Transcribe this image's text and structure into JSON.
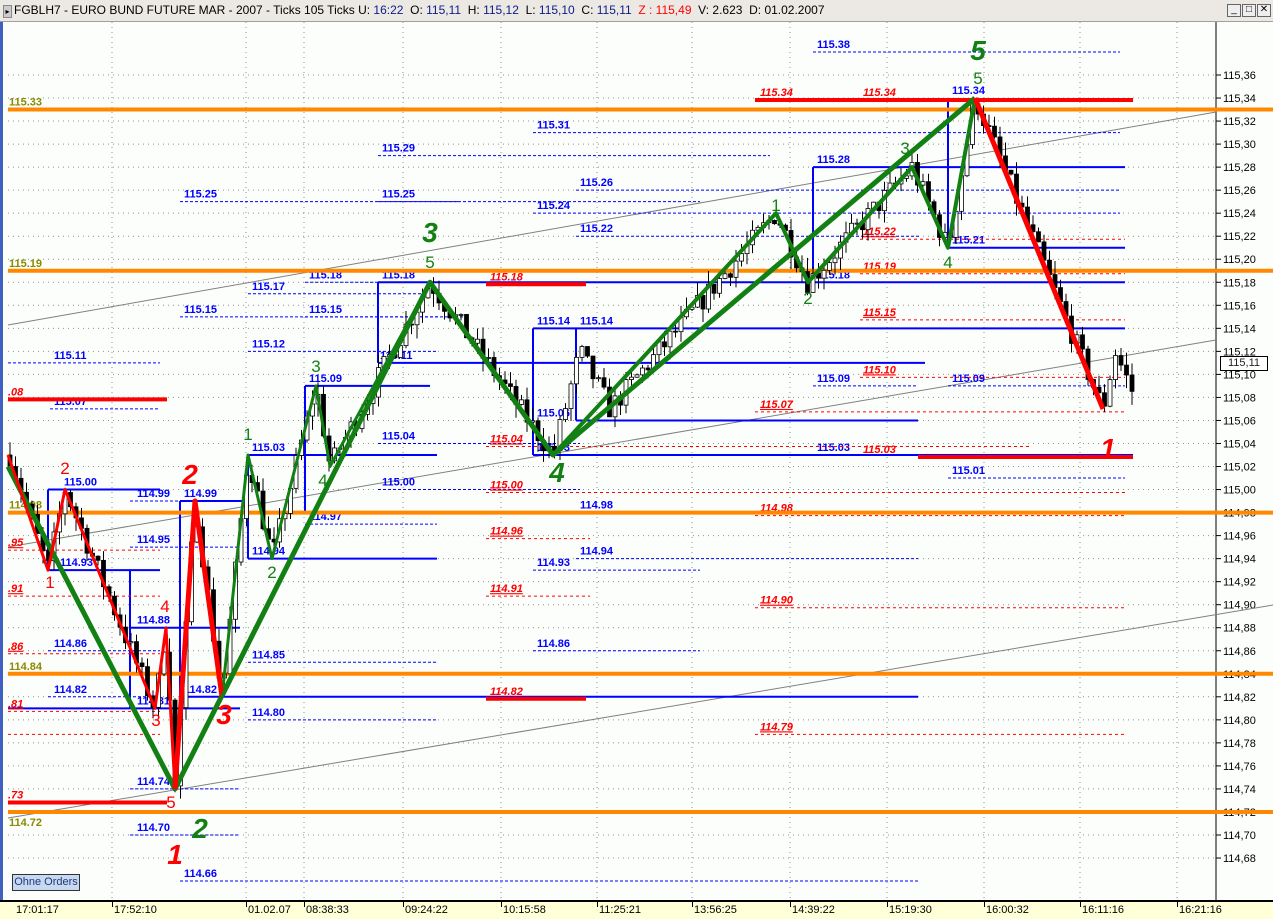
{
  "window": {
    "symbol": "FGBLH7 - EURO BUND FUTURE  MAR - 2007 - Ticks 105 Ticks",
    "u_label": "U:",
    "u_value": "16:22",
    "o_label": "O:",
    "o_value": "115,11",
    "h_label": "H:",
    "h_value": "115,12",
    "l_label": "L:",
    "l_value": "115,10",
    "c_label": "C:",
    "c_value": "115,11",
    "z_text": "Z : 115,49",
    "v_text": "V: 2.623",
    "d_text": "D: 01.02.2007",
    "minimize_icon": "_",
    "maximize_icon": "□",
    "close_icon": "✕"
  },
  "ohne_orders_label": "Ohne Orders",
  "current_price_label": "115,11",
  "colors": {
    "blue": "#0000ff",
    "red": "#ff0000",
    "green": "#138013",
    "orange": "#ff8800",
    "olive": "#8a8a00",
    "grid": "#909090"
  },
  "chart_data": {
    "type": "candlestick",
    "title": "FGBLH7 - EURO BUND FUTURE  MAR - 2007 - Ticks 105 Ticks",
    "y_ticks": [
      "115,36",
      "115,34",
      "115,32",
      "115,30",
      "115,28",
      "115,26",
      "115,24",
      "115,22",
      "115,20",
      "115,18",
      "115,16",
      "115,14",
      "115,12",
      "115,10",
      "115,08",
      "115,06",
      "115,04",
      "115,02",
      "115,00",
      "114,98",
      "114,96",
      "114,94",
      "114,92",
      "114,90",
      "114,88",
      "114,86",
      "114,84",
      "114,82",
      "114,80",
      "114,78",
      "114,76",
      "114,74",
      "114,72",
      "114,70",
      "114,68"
    ],
    "ylim": [
      114.66,
      115.38
    ],
    "x_ticks": [
      "17:01:17",
      "17:52:10",
      "01.02.07",
      "08:38:33",
      "09:24:22",
      "10:15:58",
      "11:25:21",
      "13:56:25",
      "14:39:22",
      "15:19:30",
      "16:00:32",
      "16:11:16",
      "16:21:16"
    ],
    "grid": true,
    "last_price": 115.11,
    "price_path": [
      115.03,
      114.93,
      115.0,
      114.81,
      114.88,
      114.74,
      114.99,
      114.82,
      115.03,
      114.94,
      115.09,
      115.02,
      115.18,
      115.03,
      115.12,
      115.07,
      115.24,
      115.18,
      115.28,
      115.21,
      115.34,
      115.07,
      115.12,
      115.08
    ],
    "orange_levels": [
      {
        "price": 115.33,
        "label": "115.33"
      },
      {
        "price": 115.19,
        "label": "115.19"
      },
      {
        "price": 114.98,
        "label": "114.98"
      },
      {
        "price": 114.84,
        "label": "114.84"
      },
      {
        "price": 114.72,
        "label": "114.72"
      }
    ],
    "red_thick_levels": [
      {
        "price": 115.34,
        "labels": [
          "115.34",
          "115.34"
        ]
      },
      {
        "price": 115.18,
        "labels": [
          "115.18"
        ]
      },
      {
        "price": 114.82,
        "labels": [
          "114.82"
        ]
      },
      {
        "price": 115.08,
        "labels": [
          ".08"
        ]
      },
      {
        "price": 115.03,
        "labels": [
          "115.03"
        ]
      },
      {
        "price": 114.73,
        "labels": [
          ".73"
        ]
      }
    ],
    "red_dashed_levels": [
      {
        "price": 115.22,
        "label": "115.22"
      },
      {
        "price": 115.19,
        "label": "115.19"
      },
      {
        "price": 115.15,
        "label": "115.15"
      },
      {
        "price": 115.1,
        "label": "115.10"
      },
      {
        "price": 115.07,
        "label": "115.07"
      },
      {
        "price": 115.04,
        "label": "115.04"
      },
      {
        "price": 115.0,
        "label": "115.00"
      },
      {
        "price": 114.96,
        "label": "114.96"
      },
      {
        "price": 114.91,
        "label": "114.91"
      },
      {
        "price": 114.98,
        "label": "114.98"
      },
      {
        "price": 114.9,
        "label": "114.90"
      },
      {
        "price": 114.79,
        "label": "114.79"
      },
      {
        "price": 114.95,
        "label": ".95"
      },
      {
        "price": 114.91,
        "label": ".91"
      },
      {
        "price": 114.86,
        "label": ".86"
      },
      {
        "price": 114.81,
        "label": ".81"
      },
      {
        "price": 114.79,
        "label": ""
      }
    ],
    "blue_levels": [
      {
        "price": 115.38,
        "label": "115.38",
        "style": "dashed"
      },
      {
        "price": 115.31,
        "label": "115.31",
        "style": "dashed"
      },
      {
        "price": 115.29,
        "label": "115.29",
        "style": "dashed"
      },
      {
        "price": 115.28,
        "label": "115.28",
        "style": "solid"
      },
      {
        "price": 115.26,
        "label": "115.26",
        "style": "dashed"
      },
      {
        "price": 115.25,
        "label": "115.25",
        "style": "dashed"
      },
      {
        "price": 115.25,
        "label": "115.25",
        "style": "dashed"
      },
      {
        "price": 115.24,
        "label": "115.24",
        "style": "dashed"
      },
      {
        "price": 115.22,
        "label": "115.22",
        "style": "dashed"
      },
      {
        "price": 115.21,
        "label": "115.21",
        "style": "solid"
      },
      {
        "price": 115.18,
        "label": "115.18",
        "style": "dashed"
      },
      {
        "price": 115.18,
        "label": "115.18",
        "style": "solid"
      },
      {
        "price": 115.18,
        "label": "115.18",
        "style": "none"
      },
      {
        "price": 115.17,
        "label": "115.17",
        "style": "dashed"
      },
      {
        "price": 115.15,
        "label": "115.15",
        "style": "dashed"
      },
      {
        "price": 115.15,
        "label": "115.15",
        "style": "dashed"
      },
      {
        "price": 115.14,
        "label": "115.14",
        "style": "solid"
      },
      {
        "price": 115.14,
        "label": "115.14",
        "style": "none"
      },
      {
        "price": 115.12,
        "label": "115.12",
        "style": "dashed"
      },
      {
        "price": 115.11,
        "label": "115.11",
        "style": "dashed"
      },
      {
        "price": 115.11,
        "label": "115.11",
        "style": "solid"
      },
      {
        "price": 115.09,
        "label": "115.09",
        "style": "solid"
      },
      {
        "price": 115.09,
        "label": "115.09",
        "style": "dashed"
      },
      {
        "price": 115.09,
        "label": "115.09",
        "style": "dashed"
      },
      {
        "price": 115.07,
        "label": "115.07",
        "style": "dashed"
      },
      {
        "price": 115.06,
        "label": "115.06",
        "style": "solid"
      },
      {
        "price": 115.04,
        "label": "115.04",
        "style": "dashed"
      },
      {
        "price": 115.03,
        "label": "115.03",
        "style": "solid"
      },
      {
        "price": 115.03,
        "label": "115.03",
        "style": "solid"
      },
      {
        "price": 115.03,
        "label": "115.03",
        "style": "none"
      },
      {
        "price": 115.01,
        "label": "115.01",
        "style": "dashed"
      },
      {
        "price": 115.0,
        "label": "115.00",
        "style": "solid"
      },
      {
        "price": 115.0,
        "label": "115.00",
        "style": "dashed"
      },
      {
        "price": 114.99,
        "label": "114.99",
        "style": "dashed"
      },
      {
        "price": 114.99,
        "label": "114.99",
        "style": "solid"
      },
      {
        "price": 114.98,
        "label": "114.98",
        "style": "solid"
      },
      {
        "price": 114.97,
        "label": "114.97",
        "style": "dashed"
      },
      {
        "price": 114.95,
        "label": "114.95",
        "style": "dashed"
      },
      {
        "price": 114.94,
        "label": "114.94",
        "style": "solid"
      },
      {
        "price": 114.94,
        "label": "114.94",
        "style": "dashed"
      },
      {
        "price": 114.93,
        "label": "114.93",
        "style": "solid"
      },
      {
        "price": 114.93,
        "label": "114.93",
        "style": "dashed"
      },
      {
        "price": 114.88,
        "label": "114.88",
        "style": "solid"
      },
      {
        "price": 114.86,
        "label": "114.86",
        "style": "dashed"
      },
      {
        "price": 114.86,
        "label": "114.86",
        "style": "dashed"
      },
      {
        "price": 114.85,
        "label": "114.85",
        "style": "dashed"
      },
      {
        "price": 114.82,
        "label": "114.82",
        "style": "dashed"
      },
      {
        "price": 114.82,
        "label": "114.82",
        "style": "solid"
      },
      {
        "price": 114.81,
        "label": "114.81",
        "style": "solid"
      },
      {
        "price": 114.8,
        "label": "114.80",
        "style": "dashed"
      },
      {
        "price": 114.74,
        "label": "114.74",
        "style": "dashed"
      },
      {
        "price": 114.7,
        "label": "114.70",
        "style": "dashed"
      },
      {
        "price": 114.66,
        "label": "114.66",
        "style": "dashed"
      },
      {
        "price": 115.34,
        "label": "115.34",
        "style": "none"
      }
    ],
    "waves": [
      {
        "name": "green-major",
        "color": "green",
        "points": [
          115.02,
          114.74,
          115.18,
          115.03,
          115.34
        ]
      },
      {
        "name": "green-minor-a",
        "color": "green",
        "points": [
          114.82,
          115.03,
          114.94,
          115.09,
          115.02,
          115.18
        ]
      },
      {
        "name": "green-minor-b",
        "color": "green",
        "points": [
          115.03,
          115.24,
          115.18,
          115.28,
          115.21,
          115.34
        ]
      },
      {
        "name": "red-a",
        "color": "red",
        "points": [
          115.03,
          114.93,
          115.0,
          114.81,
          114.88,
          114.74
        ]
      },
      {
        "name": "red-b",
        "color": "red",
        "points": [
          114.74,
          114.99,
          114.82
        ]
      },
      {
        "name": "red-c",
        "color": "red",
        "points": [
          115.34,
          115.07
        ]
      }
    ],
    "wave_labels": [
      {
        "text": "5",
        "color": "green",
        "size": "big"
      },
      {
        "text": "5",
        "color": "green",
        "size": "small"
      },
      {
        "text": "3",
        "color": "green",
        "size": "big"
      },
      {
        "text": "5",
        "color": "green",
        "size": "small"
      },
      {
        "text": "4",
        "color": "green",
        "size": "big"
      },
      {
        "text": "2",
        "color": "green",
        "size": "big"
      },
      {
        "text": "1",
        "color": "green",
        "size": "small"
      },
      {
        "text": "2",
        "color": "green",
        "size": "small"
      },
      {
        "text": "3",
        "color": "green",
        "size": "small"
      },
      {
        "text": "4",
        "color": "green",
        "size": "small"
      },
      {
        "text": "1",
        "color": "green",
        "size": "small"
      },
      {
        "text": "2",
        "color": "green",
        "size": "small"
      },
      {
        "text": "3",
        "color": "green",
        "size": "small"
      },
      {
        "text": "4",
        "color": "green",
        "size": "small"
      },
      {
        "text": "2",
        "color": "red",
        "size": "small"
      },
      {
        "text": "1",
        "color": "red",
        "size": "small"
      },
      {
        "text": "3",
        "color": "red",
        "size": "small"
      },
      {
        "text": "4",
        "color": "red",
        "size": "small"
      },
      {
        "text": "5",
        "color": "red",
        "size": "small"
      },
      {
        "text": "2",
        "color": "red",
        "size": "big"
      },
      {
        "text": "3",
        "color": "red",
        "size": "big"
      },
      {
        "text": "1",
        "color": "red",
        "size": "big"
      },
      {
        "text": "1",
        "color": "red",
        "size": "big"
      }
    ]
  }
}
